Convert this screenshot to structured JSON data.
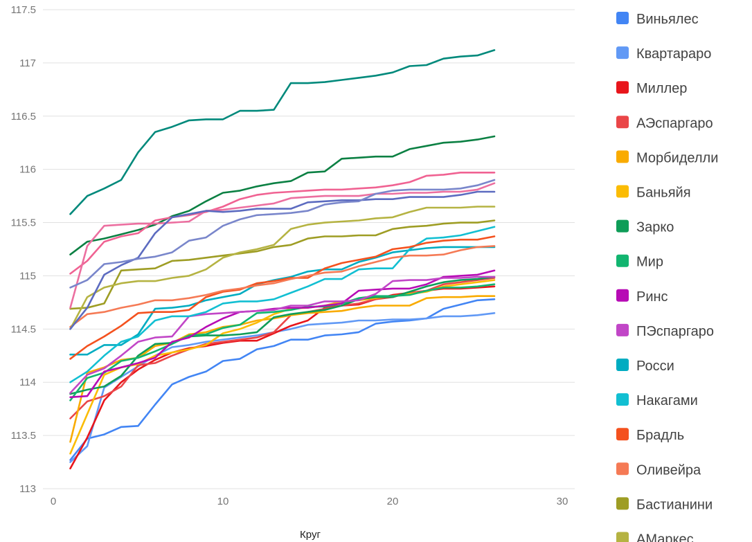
{
  "chart_data": {
    "type": "line",
    "title": "",
    "xlabel": "Круг",
    "ylabel": "",
    "xlim": [
      0,
      30
    ],
    "ylim": [
      113,
      117.5
    ],
    "x_ticks": [
      0,
      10,
      20,
      30
    ],
    "y_ticks": [
      113,
      113.5,
      114,
      114.5,
      115,
      115.5,
      116,
      116.5,
      117,
      117.5
    ],
    "x_tick_labels": [
      "0",
      "10",
      "20",
      "30"
    ],
    "y_tick_labels": [
      "113",
      "113.5",
      "114",
      "114.5",
      "115",
      "115.5",
      "116",
      "116.5",
      "117",
      "117.5"
    ],
    "grid": true,
    "legend_position": "right",
    "x": [
      1,
      2,
      3,
      4,
      5,
      6,
      7,
      8,
      9,
      10,
      11,
      12,
      13,
      14,
      15,
      16,
      17,
      18,
      19,
      20,
      21,
      22,
      23,
      24,
      25,
      26
    ],
    "series": [
      {
        "name": "Виньялес",
        "color": "#4285f4",
        "values": [
          113.27,
          113.47,
          113.51,
          113.58,
          113.59,
          113.79,
          113.98,
          114.05,
          114.1,
          114.2,
          114.22,
          114.31,
          114.34,
          114.4,
          114.4,
          114.44,
          114.45,
          114.47,
          114.55,
          114.57,
          114.58,
          114.6,
          114.69,
          114.73,
          114.77,
          114.78
        ]
      },
      {
        "name": "Квартараро",
        "color": "#6199f5",
        "values": [
          113.25,
          113.4,
          113.95,
          114.05,
          114.15,
          114.25,
          114.33,
          114.35,
          114.38,
          114.4,
          114.42,
          114.44,
          114.47,
          114.5,
          114.54,
          114.55,
          114.56,
          114.58,
          114.58,
          114.59,
          114.59,
          114.6,
          114.62,
          114.62,
          114.63,
          114.65
        ]
      },
      {
        "name": "Миллер",
        "color": "#e8151b",
        "values": [
          113.19,
          113.48,
          113.83,
          114.0,
          114.12,
          114.21,
          114.28,
          114.32,
          114.34,
          114.37,
          114.39,
          114.39,
          114.46,
          114.53,
          114.58,
          114.7,
          114.72,
          114.73,
          114.78,
          114.82,
          114.84,
          114.86,
          114.88,
          114.88,
          114.89,
          114.9
        ]
      },
      {
        "name": "АЭспаргаро",
        "color": "#ea4648",
        "values": [
          113.66,
          113.82,
          113.87,
          113.96,
          114.16,
          114.18,
          114.25,
          114.31,
          114.36,
          114.38,
          114.4,
          114.42,
          114.47,
          114.63,
          114.66,
          114.69,
          114.72,
          114.74,
          114.78,
          114.8,
          114.84,
          114.86,
          114.92,
          114.94,
          114.96,
          114.98
        ]
      },
      {
        "name": "Морбиделли",
        "color": "#f9ab00",
        "values": [
          113.44,
          114.09,
          114.14,
          114.21,
          114.23,
          114.34,
          114.37,
          114.45,
          114.47,
          114.52,
          114.54,
          114.58,
          114.6,
          114.63,
          114.65,
          114.66,
          114.67,
          114.7,
          114.72,
          114.72,
          114.72,
          114.79,
          114.8,
          114.8,
          114.81,
          114.81
        ]
      },
      {
        "name": "Баньяйя",
        "color": "#fbbc04",
        "values": [
          113.33,
          113.7,
          114.07,
          114.14,
          114.17,
          114.25,
          114.28,
          114.31,
          114.35,
          114.46,
          114.5,
          114.56,
          114.64,
          114.69,
          114.7,
          114.72,
          114.76,
          114.77,
          114.79,
          114.81,
          114.83,
          114.85,
          114.9,
          114.92,
          114.94,
          114.96
        ]
      },
      {
        "name": "Зарко",
        "color": "#0f9d58",
        "values": [
          113.89,
          113.93,
          113.96,
          114.06,
          114.25,
          114.36,
          114.37,
          114.43,
          114.44,
          114.44,
          114.45,
          114.47,
          114.61,
          114.64,
          114.66,
          114.68,
          114.72,
          114.78,
          114.8,
          114.8,
          114.85,
          114.9,
          114.94,
          114.96,
          114.97,
          114.99
        ]
      },
      {
        "name": "Мир",
        "color": "#12b570",
        "values": [
          113.83,
          114.04,
          114.09,
          114.2,
          114.23,
          114.29,
          114.36,
          114.44,
          114.45,
          114.51,
          114.54,
          114.65,
          114.66,
          114.68,
          114.71,
          114.71,
          114.74,
          114.79,
          114.81,
          114.81,
          114.82,
          114.86,
          114.89,
          114.89,
          114.9,
          114.92
        ]
      },
      {
        "name": "Ринс",
        "color": "#b70bb5",
        "values": [
          113.86,
          113.87,
          114.1,
          114.14,
          114.18,
          114.23,
          114.38,
          114.42,
          114.52,
          114.6,
          114.66,
          114.67,
          114.69,
          114.7,
          114.7,
          114.72,
          114.74,
          114.86,
          114.87,
          114.88,
          114.88,
          114.92,
          114.99,
          115.0,
          115.01,
          115.05
        ]
      },
      {
        "name": "ПЭспаргаро",
        "color": "#c146c7",
        "values": [
          113.9,
          114.07,
          114.13,
          114.25,
          114.38,
          114.42,
          114.43,
          114.62,
          114.64,
          114.65,
          114.66,
          114.67,
          114.68,
          114.72,
          114.72,
          114.76,
          114.76,
          114.77,
          114.83,
          114.95,
          114.96,
          114.96,
          114.98,
          114.98,
          114.99,
          114.99
        ]
      },
      {
        "name": "Росси",
        "color": "#00acc1",
        "values": [
          114.26,
          114.26,
          114.35,
          114.35,
          114.45,
          114.69,
          114.7,
          114.72,
          114.77,
          114.8,
          114.83,
          114.92,
          114.96,
          114.99,
          115.04,
          115.06,
          115.06,
          115.13,
          115.17,
          115.22,
          115.24,
          115.26,
          115.27,
          115.27,
          115.27,
          115.27
        ]
      },
      {
        "name": "Накагами",
        "color": "#12bfd2",
        "values": [
          114.0,
          114.1,
          114.25,
          114.38,
          114.43,
          114.58,
          114.62,
          114.62,
          114.66,
          114.74,
          114.76,
          114.76,
          114.78,
          114.84,
          114.9,
          114.97,
          114.97,
          115.06,
          115.07,
          115.07,
          115.25,
          115.35,
          115.36,
          115.38,
          115.42,
          115.46
        ]
      },
      {
        "name": "Брадль",
        "color": "#f4511e",
        "values": [
          114.22,
          114.34,
          114.43,
          114.53,
          114.65,
          114.66,
          114.66,
          114.68,
          114.8,
          114.85,
          114.87,
          114.93,
          114.95,
          114.98,
          114.98,
          115.07,
          115.12,
          115.15,
          115.18,
          115.25,
          115.27,
          115.31,
          115.33,
          115.34,
          115.34,
          115.37
        ]
      },
      {
        "name": "Оливейра",
        "color": "#f57a55",
        "values": [
          114.52,
          114.64,
          114.66,
          114.7,
          114.73,
          114.77,
          114.77,
          114.79,
          114.82,
          114.86,
          114.88,
          114.91,
          114.93,
          114.97,
          115.0,
          115.03,
          115.04,
          115.09,
          115.13,
          115.17,
          115.19,
          115.19,
          115.2,
          115.24,
          115.27,
          115.28
        ]
      },
      {
        "name": "Бастианини",
        "color": "#9e9d24",
        "values": [
          114.69,
          114.7,
          114.74,
          115.05,
          115.06,
          115.07,
          115.14,
          115.15,
          115.17,
          115.19,
          115.21,
          115.23,
          115.27,
          115.29,
          115.35,
          115.37,
          115.37,
          115.38,
          115.38,
          115.44,
          115.46,
          115.47,
          115.49,
          115.5,
          115.5,
          115.52
        ]
      },
      {
        "name": "АМаркес",
        "color": "#b5b342",
        "values": [
          114.5,
          114.8,
          114.89,
          114.93,
          114.95,
          114.95,
          114.98,
          115.0,
          115.06,
          115.17,
          115.22,
          115.25,
          115.29,
          115.44,
          115.48,
          115.5,
          115.51,
          115.52,
          115.54,
          115.55,
          115.6,
          115.64,
          115.64,
          115.64,
          115.65,
          115.65
        ]
      },
      {
        "name": "",
        "color": "#00897b",
        "values": [
          115.58,
          115.75,
          115.82,
          115.9,
          116.16,
          116.35,
          116.4,
          116.46,
          116.47,
          116.47,
          116.55,
          116.55,
          116.56,
          116.81,
          116.81,
          116.82,
          116.84,
          116.86,
          116.88,
          116.91,
          116.97,
          116.98,
          117.04,
          117.06,
          117.07,
          117.12
        ]
      },
      {
        "name": "",
        "color": "#0b8043",
        "values": [
          115.2,
          115.32,
          115.35,
          115.39,
          115.43,
          115.48,
          115.56,
          115.61,
          115.7,
          115.78,
          115.8,
          115.84,
          115.87,
          115.89,
          115.97,
          115.98,
          116.1,
          116.11,
          116.12,
          116.12,
          116.19,
          116.22,
          116.25,
          116.26,
          116.28,
          116.31
        ]
      },
      {
        "name": "",
        "color": "#f06292",
        "values": [
          115.02,
          115.14,
          115.32,
          115.37,
          115.4,
          115.52,
          115.55,
          115.57,
          115.6,
          115.65,
          115.72,
          115.76,
          115.78,
          115.79,
          115.8,
          115.81,
          115.81,
          115.82,
          115.83,
          115.85,
          115.88,
          115.94,
          115.95,
          115.97,
          115.97,
          115.97
        ]
      },
      {
        "name": "",
        "color": "#ec6fa0",
        "values": [
          114.7,
          115.28,
          115.47,
          115.48,
          115.49,
          115.49,
          115.5,
          115.51,
          115.61,
          115.62,
          115.64,
          115.66,
          115.68,
          115.73,
          115.74,
          115.75,
          115.75,
          115.75,
          115.77,
          115.77,
          115.78,
          115.78,
          115.79,
          115.79,
          115.81,
          115.87
        ]
      },
      {
        "name": "",
        "color": "#5c6bc0",
        "values": [
          114.5,
          114.7,
          115.01,
          115.1,
          115.17,
          115.4,
          115.55,
          115.58,
          115.61,
          115.6,
          115.61,
          115.63,
          115.63,
          115.63,
          115.69,
          115.7,
          115.71,
          115.71,
          115.72,
          115.72,
          115.74,
          115.74,
          115.74,
          115.76,
          115.79,
          115.79
        ]
      },
      {
        "name": "",
        "color": "#7986cb",
        "values": [
          114.89,
          114.96,
          115.11,
          115.13,
          115.16,
          115.18,
          115.22,
          115.33,
          115.36,
          115.47,
          115.53,
          115.57,
          115.58,
          115.59,
          115.61,
          115.67,
          115.69,
          115.7,
          115.77,
          115.8,
          115.81,
          115.81,
          115.81,
          115.82,
          115.85,
          115.9
        ]
      }
    ]
  }
}
